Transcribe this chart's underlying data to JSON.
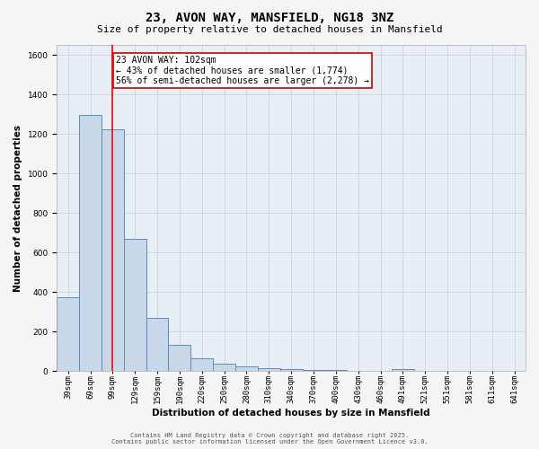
{
  "title": "23, AVON WAY, MANSFIELD, NG18 3NZ",
  "subtitle": "Size of property relative to detached houses in Mansfield",
  "xlabel": "Distribution of detached houses by size in Mansfield",
  "ylabel": "Number of detached properties",
  "categories": [
    "39sqm",
    "69sqm",
    "99sqm",
    "129sqm",
    "159sqm",
    "190sqm",
    "220sqm",
    "250sqm",
    "280sqm",
    "310sqm",
    "340sqm",
    "370sqm",
    "400sqm",
    "430sqm",
    "460sqm",
    "491sqm",
    "521sqm",
    "551sqm",
    "581sqm",
    "611sqm",
    "641sqm"
  ],
  "values": [
    375,
    1295,
    1225,
    670,
    270,
    130,
    65,
    38,
    25,
    15,
    10,
    5,
    5,
    0,
    0,
    10,
    0,
    0,
    0,
    0,
    0
  ],
  "bar_color": "#c8d8e8",
  "bar_edge_color": "#5b8db8",
  "red_line_x": 2,
  "annotation_text": "23 AVON WAY: 102sqm\n← 43% of detached houses are smaller (1,774)\n56% of semi-detached houses are larger (2,278) →",
  "annotation_box_facecolor": "#ffffff",
  "annotation_box_edgecolor": "#cc0000",
  "ylim": [
    0,
    1650
  ],
  "yticks": [
    0,
    200,
    400,
    600,
    800,
    1000,
    1200,
    1400,
    1600
  ],
  "grid_color": "#cccccc",
  "plot_bg_color": "#e8eef5",
  "fig_bg_color": "#f5f5f5",
  "footer_line1": "Contains HM Land Registry data © Crown copyright and database right 2025.",
  "footer_line2": "Contains public sector information licensed under the Open Government Licence v3.0.",
  "title_fontsize": 10,
  "subtitle_fontsize": 8,
  "axis_label_fontsize": 7.5,
  "tick_fontsize": 6.5,
  "annotation_fontsize": 7,
  "footer_fontsize": 5
}
